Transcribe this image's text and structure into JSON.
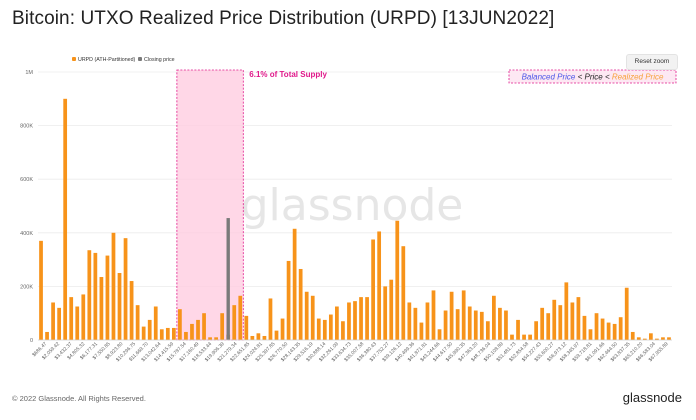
{
  "title": "Bitcoin: UTXO Realized Price Distribution (URPD) [13JUN2022]",
  "reset_zoom_label": "Reset zoom",
  "footer_copyright": "© 2022 Glassnode. All Rights Reserved.",
  "footer_brand": "glassnode",
  "watermark": "glassnode",
  "colors": {
    "bar": "#f7931a",
    "closing": "#7a7a7a",
    "highlight_fill": "#ffc9df",
    "highlight_border": "#e0188a",
    "annotation": "#e0188a",
    "box_blue": "#4a56e8",
    "box_black": "#222222",
    "box_orange": "#f7a23b"
  },
  "chart_data": {
    "type": "bar",
    "title": "Bitcoin: UTXO Realized Price Distribution (URPD) [13JUN2022]",
    "legend": {
      "placement": "top-left",
      "entries": [
        {
          "name": "URPD (ATH-Partitioned)",
          "color": "#f7931a"
        },
        {
          "name": "Closing price",
          "color": "#7a7a7a"
        }
      ]
    },
    "yticks": [
      {
        "value": 0,
        "label": "0"
      },
      {
        "value": 200000,
        "label": "200K"
      },
      {
        "value": 400000,
        "label": "400K"
      },
      {
        "value": 600000,
        "label": "600K"
      },
      {
        "value": 800000,
        "label": "800K"
      },
      {
        "value": 1000000,
        "label": "1M"
      }
    ],
    "ylim": [
      0,
      1000000
    ],
    "grid": true,
    "x_tick_labels": [
      "$686.47",
      "$2,059.42",
      "$3,432.37",
      "$4,805.32",
      "$6,177.31",
      "$7,550.85",
      "$8,923.80",
      "$10,296.75",
      "$11,669.70",
      "$13,042.64",
      "$14,415.59",
      "$15,787.54",
      "$17,160.49",
      "$18,533.44",
      "$19,906.39",
      "$21,279.34",
      "$22,651.85",
      "$24,024.81",
      "$25,397.85",
      "$26,770.50",
      "$28,143.35",
      "$29,516.19",
      "$30,888.14",
      "$32,261.09",
      "$33,634.73",
      "$35,007.58",
      "$36,380.43",
      "$37,752.27",
      "$39,126.12",
      "$40,499.36",
      "$41,871.81",
      "$43,244.66",
      "$44,617.50",
      "$45,990.35",
      "$47,363.20",
      "$48,736.04",
      "$50,108.89",
      "$51,481.73",
      "$52,854.58",
      "$54,227.43",
      "$55,600.27",
      "$56,973.12",
      "$58,345.97",
      "$59,718.81",
      "$61,091.66",
      "$62,464.50",
      "$63,837.35",
      "$65,210.20",
      "$66,583.04",
      "$67,955.89"
    ],
    "series": [
      {
        "name": "URPD (ATH-Partitioned)",
        "values": [
          370000,
          30000,
          140000,
          120000,
          900000,
          160000,
          125000,
          170000,
          335000,
          325000,
          235000,
          315000,
          400000,
          250000,
          380000,
          220000,
          130000,
          50000,
          75000,
          125000,
          40000,
          45000,
          45000,
          115000,
          30000,
          60000,
          75000,
          100000,
          10000,
          10000,
          100000,
          20000,
          130000,
          165000,
          90000,
          15000,
          25000,
          15000,
          155000,
          35000,
          80000,
          295000,
          415000,
          265000,
          180000,
          165000,
          80000,
          75000,
          95000,
          125000,
          70000,
          140000,
          145000,
          160000,
          160000,
          375000,
          405000,
          200000,
          225000,
          445000,
          350000,
          140000,
          120000,
          65000,
          140000,
          185000,
          40000,
          110000,
          180000,
          115000,
          185000,
          125000,
          110000,
          105000,
          70000,
          165000,
          120000,
          110000,
          20000,
          75000,
          20000,
          20000,
          70000,
          120000,
          100000,
          150000,
          130000,
          215000,
          140000,
          160000,
          90000,
          40000,
          100000,
          80000,
          65000,
          60000,
          85000,
          195000,
          30000,
          10000,
          5000,
          25000,
          5000,
          10000,
          10000
        ],
        "color": "#f7931a"
      }
    ],
    "closing_price": {
      "bar_index": 31,
      "value": 455000,
      "color": "#7a7a7a"
    },
    "highlight": {
      "start_index": 23,
      "end_index": 33,
      "label": "6.1% of Total Supply"
    },
    "annotation_box": {
      "part1": "Balanced Price",
      "sep1": " < ",
      "part2": "Price",
      "sep2": " < ",
      "part3": "Realized Price"
    }
  }
}
